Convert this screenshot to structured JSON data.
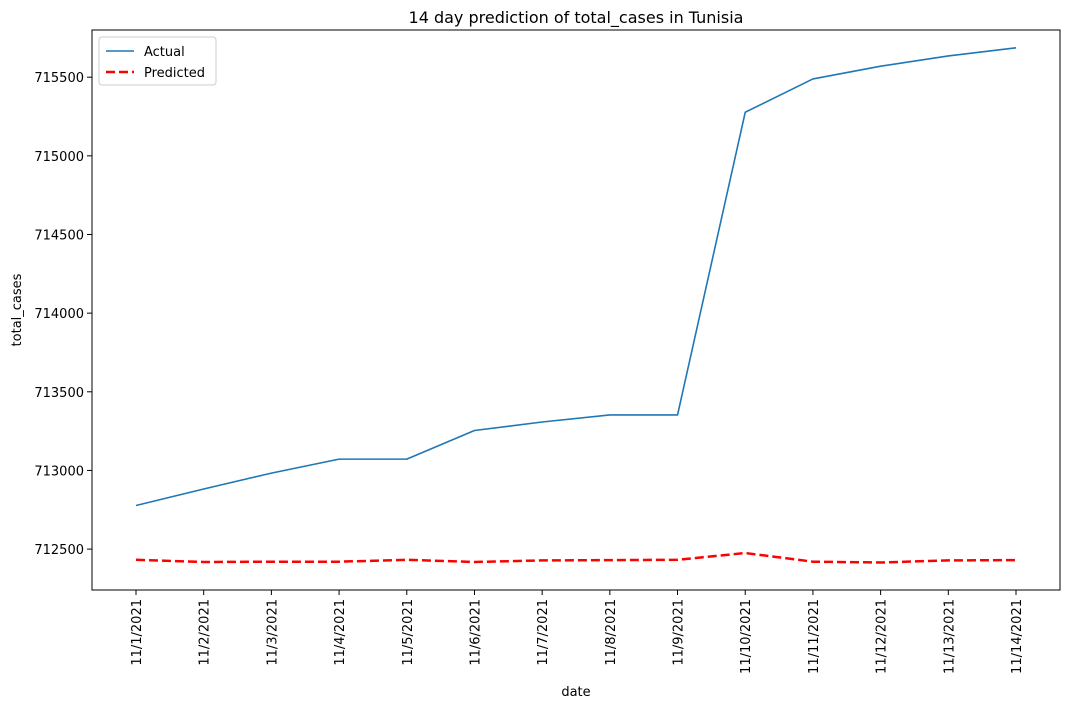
{
  "chart_data": {
    "type": "line",
    "title": "14 day prediction of total_cases in Tunisia",
    "xlabel": "date",
    "ylabel": "total_cases",
    "categories": [
      "11/1/2021",
      "11/2/2021",
      "11/3/2021",
      "11/4/2021",
      "11/5/2021",
      "11/6/2021",
      "11/7/2021",
      "11/8/2021",
      "11/9/2021",
      "11/10/2021",
      "11/11/2021",
      "11/12/2021",
      "11/13/2021",
      "11/14/2021"
    ],
    "yticks": [
      712500,
      713000,
      713500,
      714000,
      714500,
      715000,
      715500
    ],
    "ylim": [
      712240,
      715800
    ],
    "grid": false,
    "legend_position": "top-left",
    "series": [
      {
        "name": "Actual",
        "color": "#1f77b4",
        "style": "solid",
        "values": [
          712777,
          712882,
          712983,
          713072,
          713072,
          713254,
          713308,
          713353,
          713353,
          715277,
          715489,
          715570,
          715635,
          715687
        ]
      },
      {
        "name": "Predicted",
        "color": "#ff0000",
        "style": "dashed",
        "values": [
          712432,
          712418,
          712420,
          712420,
          712432,
          712418,
          712428,
          712430,
          712432,
          712475,
          712420,
          712415,
          712428,
          712430
        ]
      }
    ]
  }
}
